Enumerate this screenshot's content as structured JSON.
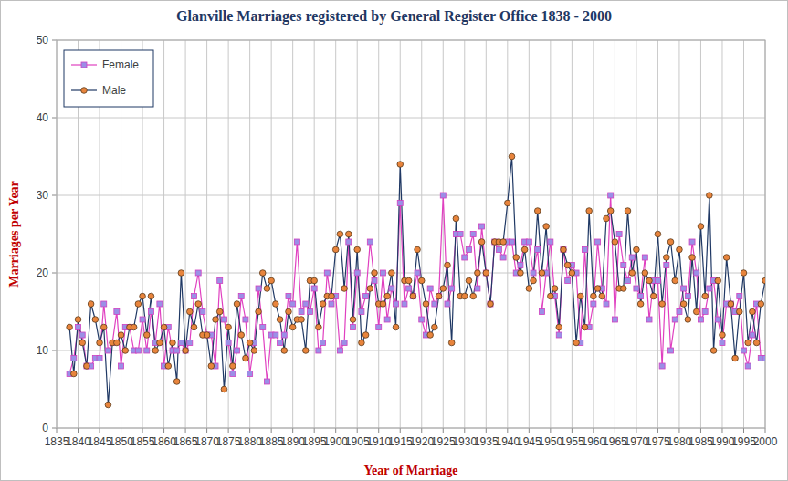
{
  "chart_data": {
    "type": "line",
    "title": "Glanville Marriages registered by General Register Office 1838 - 2000",
    "xlabel": "Year of Marriage",
    "ylabel": "Marriages per Year",
    "x": [
      1838,
      1839,
      1840,
      1841,
      1842,
      1843,
      1844,
      1845,
      1846,
      1847,
      1848,
      1849,
      1850,
      1851,
      1852,
      1853,
      1854,
      1855,
      1856,
      1857,
      1858,
      1859,
      1860,
      1861,
      1862,
      1863,
      1864,
      1865,
      1866,
      1867,
      1868,
      1869,
      1870,
      1871,
      1872,
      1873,
      1874,
      1875,
      1876,
      1877,
      1878,
      1879,
      1880,
      1881,
      1882,
      1883,
      1884,
      1885,
      1886,
      1887,
      1888,
      1889,
      1890,
      1891,
      1892,
      1893,
      1894,
      1895,
      1896,
      1897,
      1898,
      1899,
      1900,
      1901,
      1902,
      1903,
      1904,
      1905,
      1906,
      1907,
      1908,
      1909,
      1910,
      1911,
      1912,
      1913,
      1914,
      1915,
      1916,
      1917,
      1918,
      1919,
      1920,
      1921,
      1922,
      1923,
      1924,
      1925,
      1926,
      1927,
      1928,
      1929,
      1930,
      1931,
      1932,
      1933,
      1934,
      1935,
      1936,
      1937,
      1938,
      1939,
      1940,
      1941,
      1942,
      1943,
      1944,
      1945,
      1946,
      1947,
      1948,
      1949,
      1950,
      1951,
      1952,
      1953,
      1954,
      1955,
      1956,
      1957,
      1958,
      1959,
      1960,
      1961,
      1962,
      1963,
      1964,
      1965,
      1966,
      1967,
      1968,
      1969,
      1970,
      1971,
      1972,
      1973,
      1974,
      1975,
      1976,
      1977,
      1978,
      1979,
      1980,
      1981,
      1982,
      1983,
      1984,
      1985,
      1986,
      1987,
      1988,
      1989,
      1990,
      1991,
      1992,
      1993,
      1994,
      1995,
      1996,
      1997,
      1998,
      1999,
      2000
    ],
    "series": [
      {
        "name": "Female",
        "color": "#e040c0",
        "marker": "square",
        "line_style": "solid",
        "values": [
          7,
          9,
          13,
          12,
          8,
          8,
          9,
          9,
          16,
          10,
          11,
          15,
          8,
          13,
          13,
          10,
          10,
          14,
          10,
          15,
          11,
          16,
          8,
          13,
          10,
          10,
          11,
          10,
          11,
          17,
          20,
          15,
          12,
          12,
          8,
          19,
          14,
          11,
          7,
          10,
          17,
          14,
          7,
          11,
          18,
          13,
          6,
          12,
          12,
          11,
          12,
          17,
          16,
          24,
          15,
          16,
          15,
          18,
          10,
          11,
          20,
          16,
          17,
          10,
          11,
          24,
          13,
          20,
          15,
          17,
          24,
          19,
          13,
          20,
          14,
          18,
          16,
          29,
          16,
          18,
          17,
          20,
          14,
          12,
          18,
          16,
          17,
          30,
          16,
          18,
          25,
          25,
          22,
          23,
          25,
          18,
          26,
          20,
          16,
          24,
          23,
          22,
          24,
          24,
          20,
          21,
          24,
          24,
          20,
          23,
          15,
          20,
          24,
          17,
          12,
          23,
          19,
          21,
          20,
          11,
          23,
          13,
          16,
          24,
          18,
          16,
          30,
          14,
          25,
          21,
          19,
          22,
          18,
          17,
          22,
          14,
          19,
          19,
          8,
          21,
          10,
          14,
          15,
          18,
          17,
          24,
          20,
          14,
          15,
          18,
          19,
          14,
          11,
          16,
          16,
          15,
          17,
          10,
          8,
          12,
          16,
          9,
          9
        ]
      },
      {
        "name": "Male",
        "color": "#1f3864",
        "marker": "circle",
        "line_style": "solid",
        "values": [
          13,
          7,
          14,
          11,
          8,
          16,
          14,
          11,
          13,
          3,
          11,
          11,
          12,
          10,
          13,
          13,
          16,
          17,
          12,
          17,
          10,
          11,
          13,
          8,
          11,
          6,
          20,
          10,
          15,
          13,
          16,
          12,
          12,
          8,
          14,
          15,
          5,
          13,
          8,
          16,
          12,
          9,
          11,
          10,
          15,
          20,
          18,
          19,
          16,
          14,
          10,
          15,
          13,
          14,
          14,
          10,
          19,
          19,
          13,
          16,
          17,
          17,
          23,
          25,
          18,
          25,
          14,
          23,
          11,
          12,
          18,
          20,
          16,
          16,
          17,
          20,
          13,
          34,
          19,
          19,
          17,
          23,
          19,
          16,
          12,
          13,
          17,
          18,
          21,
          11,
          27,
          17,
          17,
          19,
          17,
          20,
          24,
          20,
          16,
          24,
          24,
          24,
          29,
          35,
          22,
          20,
          23,
          18,
          19,
          28,
          20,
          26,
          17,
          18,
          13,
          23,
          21,
          20,
          11,
          17,
          13,
          28,
          17,
          18,
          17,
          27,
          28,
          24,
          18,
          18,
          28,
          20,
          23,
          16,
          20,
          19,
          17,
          25,
          16,
          22,
          24,
          19,
          23,
          16,
          14,
          22,
          15,
          26,
          17,
          30,
          10,
          19,
          12,
          22,
          16,
          9,
          15,
          20,
          11,
          15,
          11,
          16,
          19
        ]
      }
    ],
    "xlim": [
      1835,
      2000
    ],
    "xticks": [
      1835,
      1840,
      1845,
      1850,
      1855,
      1860,
      1865,
      1870,
      1875,
      1880,
      1885,
      1890,
      1895,
      1900,
      1905,
      1910,
      1915,
      1920,
      1925,
      1930,
      1935,
      1940,
      1945,
      1950,
      1955,
      1960,
      1965,
      1970,
      1975,
      1980,
      1985,
      1990,
      1995,
      2000
    ],
    "ylim": [
      0,
      50
    ],
    "yticks": [
      0,
      10,
      20,
      30,
      40,
      50
    ],
    "grid": true,
    "legend": "top-left"
  }
}
